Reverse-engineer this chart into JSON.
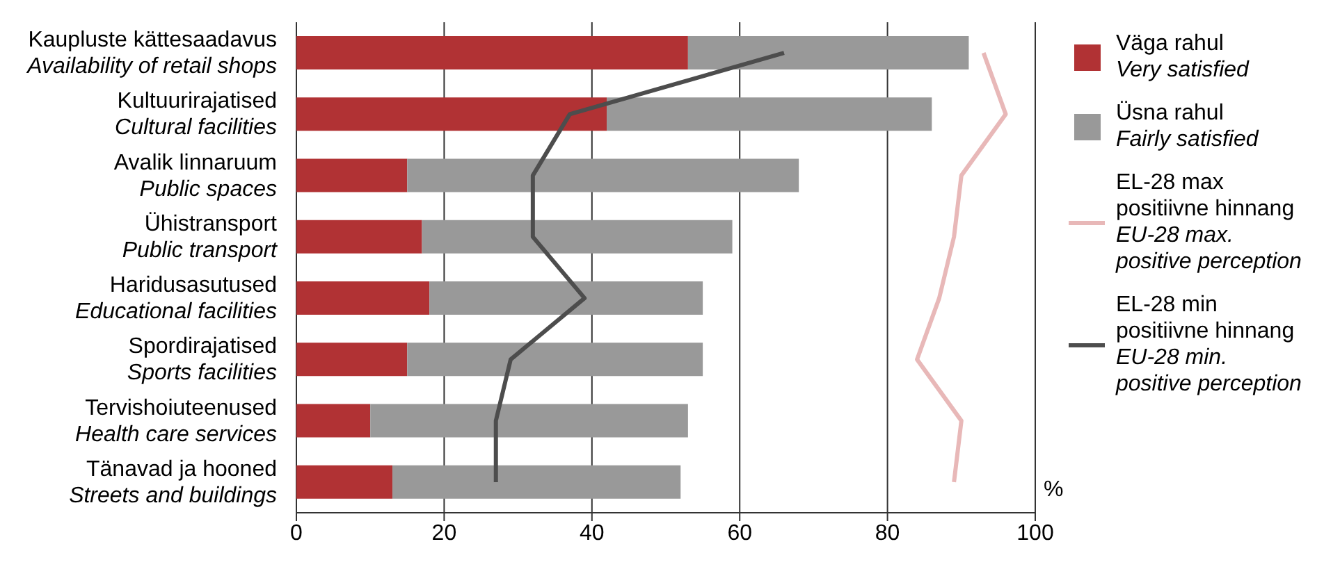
{
  "chart_data": {
    "type": "bar",
    "orientation": "horizontal",
    "stacked": true,
    "categories": [
      "Kaupluste kättesaadavus\nAvailability of retail shops",
      "Kultuurirajatised\nCultural facilities",
      "Avalik linnaruum\nPublic spaces",
      "Ühistransport\nPublic transport",
      "Haridusasutused\nEducational facilities",
      "Spordirajatised\nSports facilities",
      "Tervishoiuteenused\nHealth care services",
      "Tänavad ja hooned\nStreets and buildings"
    ],
    "series": [
      {
        "name": "Väga rahul\nVery satisfied",
        "color": "#b13234",
        "values": [
          53,
          42,
          15,
          17,
          18,
          15,
          10,
          13
        ]
      },
      {
        "name": "Üsna rahul\nFairly satisfied",
        "color": "#999999",
        "values": [
          38,
          44,
          53,
          42,
          37,
          40,
          43,
          39
        ]
      },
      {
        "type": "line",
        "name": "EL-28 max\npositiivne hinnang\nEU-28 max.\npositive perception",
        "color": "#e8b8b8",
        "values": [
          93,
          96,
          90,
          89,
          87,
          84,
          90,
          89
        ]
      },
      {
        "type": "line",
        "name": "EL-28 min\npositiivne hinnang\nEU-28 min.\npositive perception",
        "color": "#4d4d4d",
        "values": [
          66,
          37,
          32,
          32,
          39,
          29,
          27,
          27
        ]
      }
    ],
    "xlabel": "%",
    "xlim": [
      0,
      100
    ],
    "xticks": [
      0,
      20,
      40,
      60,
      80,
      100
    ],
    "grid": "x",
    "legend": "right",
    "marker": "none",
    "line_style": "solid"
  }
}
